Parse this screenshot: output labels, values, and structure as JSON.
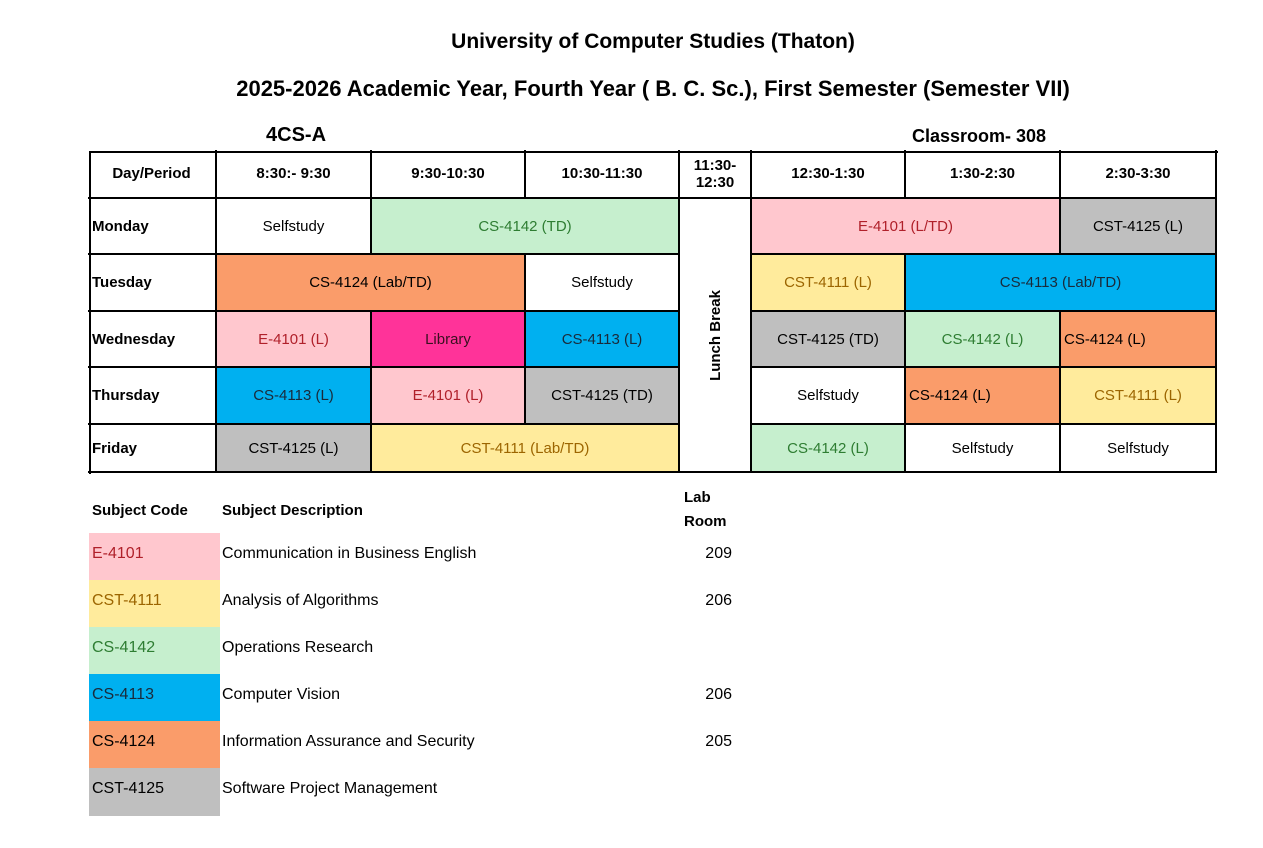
{
  "header": {
    "title": "University of Computer Studies (Thaton)",
    "subtitle": "2025-2026 Academic Year, Fourth Year ( B. C. Sc.), First Semester (Semester VII)",
    "class_name": "4CS-A",
    "classroom": "Classroom- 308"
  },
  "timetable": {
    "periods": [
      "Day/Period",
      "8:30:- 9:30",
      "9:30-10:30",
      "10:30-11:30",
      "11:30- 12:30",
      "12:30-1:30",
      "1:30-2:30",
      "2:30-3:30"
    ],
    "lunch": "Lunch Break",
    "days": [
      {
        "day": "Monday",
        "cells": [
          {
            "text": "Selfstudy",
            "color": "#ffffff",
            "text_color": "#000000"
          },
          {
            "text": "CS-4142 (TD)",
            "color": "#c6efce",
            "text_color": "#2e7d32"
          },
          {
            "text": "E-4101 (L/TD)",
            "color": "#ffc7ce",
            "text_color": "#b0202a"
          },
          {
            "text": "CST-4125 (L)",
            "color": "#bfbfbf",
            "text_color": "#000000"
          }
        ]
      },
      {
        "day": "Tuesday",
        "cells": [
          {
            "text": "CS-4124 (Lab/TD)",
            "color": "#fa9c6a",
            "text_color": "#000000"
          },
          {
            "text": "Selfstudy",
            "color": "#ffffff",
            "text_color": "#000000"
          },
          {
            "text": "CST-4111 (L)",
            "color": "#ffeb9c",
            "text_color": "#9c6500"
          },
          {
            "text": "CS-4113 (Lab/TD)",
            "color": "#00b0f0",
            "text_color": "#1a2a3a"
          }
        ]
      },
      {
        "day": "Wednesday",
        "cells": [
          {
            "text": "E-4101 (L)",
            "color": "#ffc7ce",
            "text_color": "#b0202a"
          },
          {
            "text": "Library",
            "color": "#ff3399",
            "text_color": "#3a1020"
          },
          {
            "text": "CS-4113 (L)",
            "color": "#00b0f0",
            "text_color": "#1a2a3a"
          },
          {
            "text": "CST-4125 (TD)",
            "color": "#bfbfbf",
            "text_color": "#000000"
          },
          {
            "text": "CS-4142 (L)",
            "color": "#c6efce",
            "text_color": "#2e7d32"
          },
          {
            "text": "CS-4124 (L)",
            "color": "#fa9c6a",
            "text_color": "#000000"
          }
        ]
      },
      {
        "day": "Thursday",
        "cells": [
          {
            "text": "CS-4113 (L)",
            "color": "#00b0f0",
            "text_color": "#1a2a3a"
          },
          {
            "text": "E-4101 (L)",
            "color": "#ffc7ce",
            "text_color": "#b0202a"
          },
          {
            "text": "CST-4125 (TD)",
            "color": "#bfbfbf",
            "text_color": "#000000"
          },
          {
            "text": "Selfstudy",
            "color": "#ffffff",
            "text_color": "#000000"
          },
          {
            "text": "CS-4124 (L)",
            "color": "#fa9c6a",
            "text_color": "#000000"
          },
          {
            "text": "CST-4111 (L)",
            "color": "#ffeb9c",
            "text_color": "#9c6500"
          }
        ]
      },
      {
        "day": "Friday",
        "cells": [
          {
            "text": "CST-4125 (L)",
            "color": "#bfbfbf",
            "text_color": "#000000"
          },
          {
            "text": "CST-4111 (Lab/TD)",
            "color": "#ffeb9c",
            "text_color": "#9c6500"
          },
          {
            "text": "CS-4142 (L)",
            "color": "#c6efce",
            "text_color": "#2e7d32"
          },
          {
            "text": "Selfstudy",
            "color": "#ffffff",
            "text_color": "#000000"
          },
          {
            "text": "Selfstudy",
            "color": "#ffffff",
            "text_color": "#000000"
          }
        ]
      }
    ]
  },
  "legend": {
    "headers": [
      "Subject Code",
      "Subject Description",
      "Lab Room"
    ],
    "rows": [
      {
        "code": "E-4101",
        "description": "Communication in Business English",
        "lab_room": "209",
        "color": "#ffc7ce",
        "text_color": "#b0202a"
      },
      {
        "code": "CST-4111",
        "description": "Analysis of Algorithms",
        "lab_room": "206",
        "color": "#ffeb9c",
        "text_color": "#9c6500"
      },
      {
        "code": "CS-4142",
        "description": "Operations Research",
        "color": "#c6efce",
        "text_color": "#2e7d32"
      },
      {
        "code": "CS-4113",
        "description": "Computer Vision",
        "lab_room": "206",
        "color": "#00b0f0",
        "text_color": "#1a2a3a"
      },
      {
        "code": "CS-4124",
        "description": "Information Assurance and Security",
        "lab_room": "205",
        "color": "#fa9c6a",
        "text_color": "#000000"
      },
      {
        "code": "CST-4125",
        "description": "Software Project Management",
        "color": "#bfbfbf",
        "text_color": "#000000"
      }
    ]
  }
}
